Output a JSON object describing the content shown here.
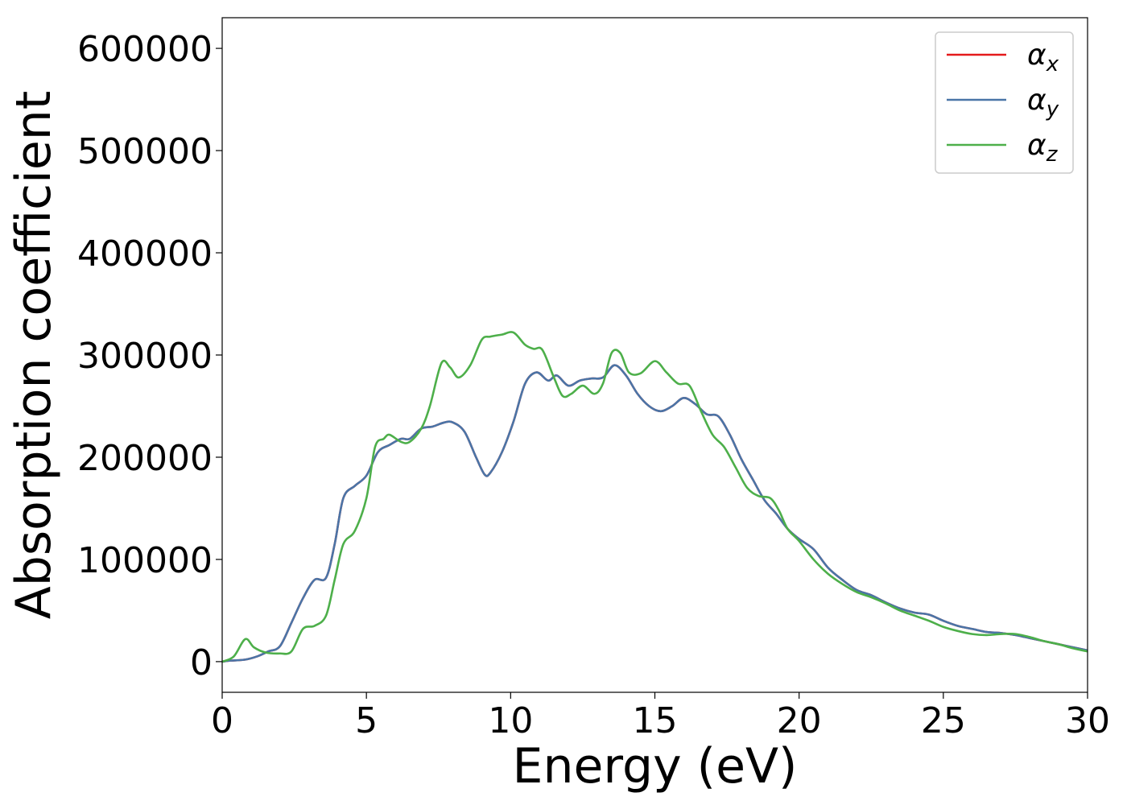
{
  "chart_data": {
    "type": "line",
    "xlabel": "Energy (eV)",
    "ylabel": "Absorption coefficient",
    "xlim": [
      0,
      30
    ],
    "ylim": [
      -30000,
      630000
    ],
    "xticks": [
      0,
      5,
      10,
      15,
      20,
      25,
      30
    ],
    "xtick_labels": [
      "0",
      "5",
      "10",
      "15",
      "20",
      "25",
      "30"
    ],
    "yticks": [
      0,
      100000,
      200000,
      300000,
      400000,
      500000,
      600000
    ],
    "ytick_labels": [
      "0",
      "100000",
      "200000",
      "300000",
      "400000",
      "500000",
      "600000"
    ],
    "grid": false,
    "legend_position": "top-right",
    "series": [
      {
        "name": "α",
        "subscript": "x",
        "color": "#e41a1c",
        "x": [
          0,
          0.3,
          0.8,
          1.2,
          1.6,
          2.0,
          2.4,
          2.8,
          3.2,
          3.6,
          3.9,
          4.2,
          4.6,
          5.0,
          5.4,
          5.8,
          6.2,
          6.5,
          6.9,
          7.3,
          7.7,
          8.0,
          8.4,
          8.8,
          9.1,
          9.3,
          9.7,
          10.1,
          10.5,
          10.9,
          11.3,
          11.6,
          12.0,
          12.4,
          12.8,
          13.2,
          13.6,
          14.0,
          14.4,
          14.8,
          15.2,
          15.6,
          16.0,
          16.4,
          16.8,
          17.2,
          17.6,
          18.0,
          18.4,
          18.8,
          19.2,
          19.6,
          20.0,
          20.5,
          21.0,
          21.5,
          22.0,
          22.5,
          23.0,
          23.5,
          24.0,
          24.5,
          25.0,
          25.5,
          26.0,
          26.5,
          27.0,
          27.5,
          28.0,
          28.5,
          29.0,
          29.5,
          30.0
        ],
        "y": [
          0,
          1000,
          2000,
          5000,
          10000,
          15000,
          38000,
          62000,
          80000,
          82000,
          115000,
          160000,
          172000,
          182000,
          205000,
          212000,
          218000,
          218000,
          228000,
          230000,
          234000,
          234000,
          225000,
          200000,
          183000,
          185000,
          205000,
          235000,
          272000,
          283000,
          275000,
          280000,
          270000,
          275000,
          277000,
          278000,
          290000,
          280000,
          262000,
          250000,
          245000,
          250000,
          258000,
          252000,
          242000,
          240000,
          222000,
          198000,
          178000,
          158000,
          145000,
          130000,
          120000,
          110000,
          92000,
          80000,
          70000,
          65000,
          58000,
          52000,
          48000,
          46000,
          40000,
          35000,
          32000,
          29000,
          28000,
          26000,
          23000,
          20000,
          17000,
          14000,
          11000
        ]
      },
      {
        "name": "α",
        "subscript": "y",
        "color": "#4a75a7",
        "x": [
          0,
          0.3,
          0.8,
          1.2,
          1.6,
          2.0,
          2.4,
          2.8,
          3.2,
          3.6,
          3.9,
          4.2,
          4.6,
          5.0,
          5.4,
          5.8,
          6.2,
          6.5,
          6.9,
          7.3,
          7.7,
          8.0,
          8.4,
          8.8,
          9.1,
          9.3,
          9.7,
          10.1,
          10.5,
          10.9,
          11.3,
          11.6,
          12.0,
          12.4,
          12.8,
          13.2,
          13.6,
          14.0,
          14.4,
          14.8,
          15.2,
          15.6,
          16.0,
          16.4,
          16.8,
          17.2,
          17.6,
          18.0,
          18.4,
          18.8,
          19.2,
          19.6,
          20.0,
          20.5,
          21.0,
          21.5,
          22.0,
          22.5,
          23.0,
          23.5,
          24.0,
          24.5,
          25.0,
          25.5,
          26.0,
          26.5,
          27.0,
          27.5,
          28.0,
          28.5,
          29.0,
          29.5,
          30.0
        ],
        "y": [
          0,
          1000,
          2000,
          5000,
          10000,
          15000,
          38000,
          62000,
          80000,
          82000,
          115000,
          160000,
          172000,
          182000,
          205000,
          212000,
          218000,
          218000,
          228000,
          230000,
          234000,
          234000,
          225000,
          200000,
          183000,
          185000,
          205000,
          235000,
          272000,
          283000,
          275000,
          280000,
          270000,
          275000,
          277000,
          278000,
          290000,
          280000,
          262000,
          250000,
          245000,
          250000,
          258000,
          252000,
          242000,
          240000,
          222000,
          198000,
          178000,
          158000,
          145000,
          130000,
          120000,
          110000,
          92000,
          80000,
          70000,
          65000,
          58000,
          52000,
          48000,
          46000,
          40000,
          35000,
          32000,
          29000,
          28000,
          26000,
          23000,
          20000,
          17000,
          14000,
          11000
        ]
      },
      {
        "name": "α",
        "subscript": "z",
        "color": "#4daf4a",
        "x": [
          0,
          0.4,
          0.8,
          1.1,
          1.5,
          2.0,
          2.4,
          2.8,
          3.2,
          3.6,
          3.9,
          4.2,
          4.6,
          5.0,
          5.3,
          5.6,
          5.8,
          6.2,
          6.5,
          6.9,
          7.2,
          7.6,
          7.9,
          8.2,
          8.6,
          9.0,
          9.3,
          9.7,
          10.1,
          10.5,
          10.8,
          11.1,
          11.5,
          11.8,
          12.1,
          12.5,
          12.9,
          13.2,
          13.5,
          13.8,
          14.1,
          14.5,
          15.0,
          15.4,
          15.8,
          16.2,
          16.6,
          17.0,
          17.4,
          17.8,
          18.2,
          18.6,
          19.0,
          19.3,
          19.6,
          20.0,
          20.5,
          21.0,
          21.5,
          22.0,
          22.5,
          23.0,
          23.5,
          24.0,
          24.5,
          25.0,
          25.5,
          26.0,
          26.5,
          27.0,
          27.5,
          28.0,
          28.5,
          29.0,
          29.5,
          30.0
        ],
        "y": [
          0,
          5000,
          22000,
          14000,
          9000,
          8000,
          10000,
          32000,
          35000,
          45000,
          80000,
          115000,
          128000,
          160000,
          210000,
          218000,
          222000,
          215000,
          215000,
          228000,
          250000,
          292000,
          288000,
          278000,
          290000,
          315000,
          318000,
          320000,
          322000,
          310000,
          306000,
          305000,
          278000,
          260000,
          262000,
          270000,
          262000,
          272000,
          302000,
          302000,
          283000,
          282000,
          294000,
          283000,
          272000,
          270000,
          245000,
          222000,
          210000,
          190000,
          170000,
          162000,
          160000,
          148000,
          130000,
          118000,
          100000,
          86000,
          76000,
          68000,
          63000,
          57000,
          50000,
          45000,
          40000,
          34000,
          30000,
          27000,
          26000,
          27000,
          27000,
          24000,
          20000,
          17000,
          13000,
          10000
        ]
      }
    ]
  }
}
